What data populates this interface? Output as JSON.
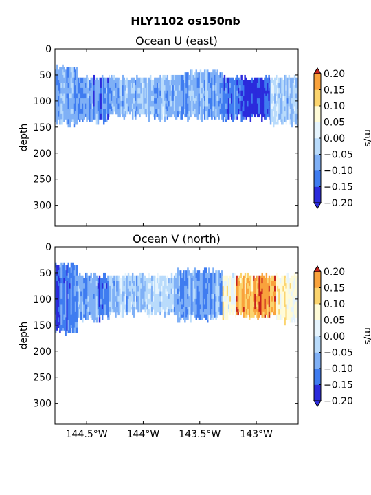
{
  "figure": {
    "suptitle": "HLY1102 os150nb"
  },
  "chart_data": [
    {
      "type": "heatmap",
      "title": "Ocean U (east)",
      "ylabel": "depth",
      "ylim": [
        340,
        0
      ],
      "yticks": [
        0,
        50,
        100,
        150,
        200,
        250,
        300
      ],
      "xlim": [
        -144.78,
        -142.63
      ],
      "xticks": [
        -144.5,
        -144.0,
        -143.5,
        -143.0
      ],
      "xticklabels": [],
      "colorbar": {
        "label": "m/s",
        "ticks": [
          -0.2,
          -0.15,
          -0.1,
          -0.05,
          0.0,
          0.05,
          0.1,
          0.15,
          0.2
        ],
        "ticklabels": [
          "−0.20",
          "−0.15",
          "−0.10",
          "−0.05",
          "0.00",
          "0.05",
          "0.10",
          "0.15",
          "0.20"
        ],
        "levels": [
          -0.2,
          -0.15,
          -0.1,
          -0.05,
          0.0,
          0.05,
          0.1,
          0.15,
          0.2
        ],
        "colors": [
          "#2b2bdc",
          "#3f7cf0",
          "#7fb0f6",
          "#b9dbfb",
          "#e6f4fd",
          "#fffbd8",
          "#fbd46e",
          "#f9a23c",
          "#ef6020",
          "#c8231c"
        ]
      },
      "sections": [
        {
          "x": [
            -144.78,
            -144.58
          ],
          "depth": [
            30,
            150
          ],
          "value": -0.09
        },
        {
          "x": [
            -144.58,
            -144.3
          ],
          "depth": [
            50,
            145
          ],
          "value": -0.1
        },
        {
          "x": [
            -144.3,
            -143.98
          ],
          "depth": [
            50,
            135
          ],
          "value": -0.07
        },
        {
          "x": [
            -143.98,
            -143.7
          ],
          "depth": [
            50,
            140
          ],
          "value": -0.06
        },
        {
          "x": [
            -143.7,
            -143.3
          ],
          "depth": [
            40,
            140
          ],
          "value": -0.08
        },
        {
          "x": [
            -143.3,
            -143.12
          ],
          "depth": [
            50,
            140
          ],
          "value": -0.12
        },
        {
          "x": [
            -143.12,
            -142.88
          ],
          "depth": [
            50,
            140
          ],
          "value": -0.18
        },
        {
          "x": [
            -142.88,
            -142.63
          ],
          "depth": [
            50,
            150
          ],
          "value": -0.04
        }
      ]
    },
    {
      "type": "heatmap",
      "title": "Ocean V (north)",
      "ylabel": "depth",
      "ylim": [
        340,
        0
      ],
      "yticks": [
        0,
        50,
        100,
        150,
        200,
        250,
        300
      ],
      "xlim": [
        -144.78,
        -142.63
      ],
      "xticks": [
        -144.5,
        -144.0,
        -143.5,
        -143.0
      ],
      "xticklabels": [
        "144.5°W",
        "144°W",
        "143.5°W",
        "143°W"
      ],
      "colorbar": {
        "label": "m/s",
        "ticks": [
          -0.2,
          -0.15,
          -0.1,
          -0.05,
          0.0,
          0.05,
          0.1,
          0.15,
          0.2
        ],
        "ticklabels": [
          "−0.20",
          "−0.15",
          "−0.10",
          "−0.05",
          "0.00",
          "0.05",
          "0.10",
          "0.15",
          "0.20"
        ],
        "levels": [
          -0.2,
          -0.15,
          -0.1,
          -0.05,
          0.0,
          0.05,
          0.1,
          0.15,
          0.2
        ],
        "colors": [
          "#2b2bdc",
          "#3f7cf0",
          "#7fb0f6",
          "#b9dbfb",
          "#e6f4fd",
          "#fffbd8",
          "#fbd46e",
          "#f9a23c",
          "#ef6020",
          "#c8231c"
        ]
      },
      "sections": [
        {
          "x": [
            -144.78,
            -144.58
          ],
          "depth": [
            30,
            170
          ],
          "value": -0.13
        },
        {
          "x": [
            -144.58,
            -144.3
          ],
          "depth": [
            50,
            145
          ],
          "value": -0.09
        },
        {
          "x": [
            -144.3,
            -143.98
          ],
          "depth": [
            50,
            135
          ],
          "value": -0.05
        },
        {
          "x": [
            -143.98,
            -143.7
          ],
          "depth": [
            50,
            135
          ],
          "value": -0.03
        },
        {
          "x": [
            -143.7,
            -143.3
          ],
          "depth": [
            40,
            145
          ],
          "value": -0.08
        },
        {
          "x": [
            -143.3,
            -143.18
          ],
          "depth": [
            50,
            140
          ],
          "value": 0.06
        },
        {
          "x": [
            -143.18,
            -142.83
          ],
          "depth": [
            50,
            140
          ],
          "value": 0.16
        },
        {
          "x": [
            -142.83,
            -142.63
          ],
          "depth": [
            50,
            150
          ],
          "value": 0.07
        }
      ]
    }
  ]
}
